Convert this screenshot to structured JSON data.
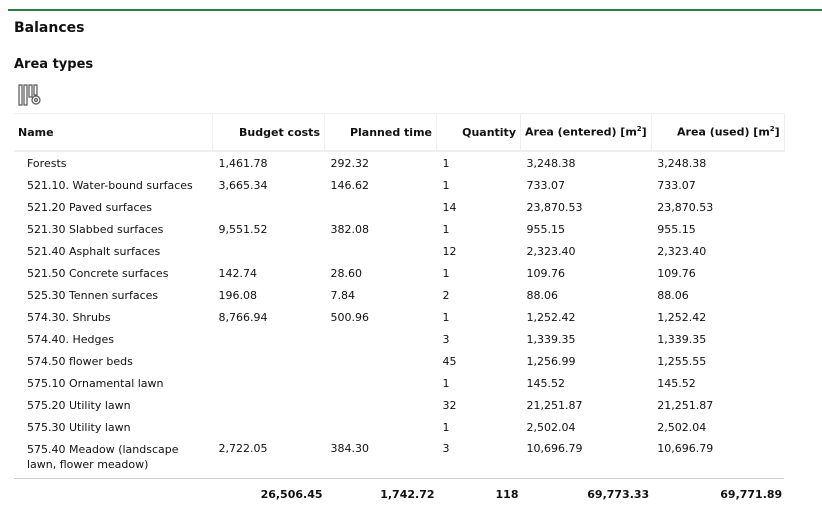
{
  "accent": "#2e7d43",
  "title": "Balances",
  "section": "Area types",
  "columns_icon": "column-settings-icon",
  "headers": {
    "name": "Name",
    "budget": "Budget costs",
    "planned": "Planned time",
    "qty": "Quantity",
    "area_entered": "Area (entered) [m",
    "area_used": "Area (used) [m",
    "sup": "2",
    "close": "]"
  },
  "rows": [
    {
      "name": "Forests",
      "budget": "1,461.78",
      "planned": "292.32",
      "qty": "1",
      "entered": "3,248.38",
      "used": "3,248.38"
    },
    {
      "name": "521.10. Water-bound surfaces",
      "budget": "3,665.34",
      "planned": "146.62",
      "qty": "1",
      "entered": "733.07",
      "used": "733.07"
    },
    {
      "name": "521.20 Paved surfaces",
      "budget": "",
      "planned": "",
      "qty": "14",
      "entered": "23,870.53",
      "used": "23,870.53"
    },
    {
      "name": "521.30 Slabbed surfaces",
      "budget": "9,551.52",
      "planned": "382.08",
      "qty": "1",
      "entered": "955.15",
      "used": "955.15"
    },
    {
      "name": "521.40 Asphalt surfaces",
      "budget": "",
      "planned": "",
      "qty": "12",
      "entered": "2,323.40",
      "used": "2,323.40"
    },
    {
      "name": "521.50 Concrete surfaces",
      "budget": "142.74",
      "planned": "28.60",
      "qty": "1",
      "entered": "109.76",
      "used": "109.76"
    },
    {
      "name": "525.30 Tennen surfaces",
      "budget": "196.08",
      "planned": "7.84",
      "qty": "2",
      "entered": "88.06",
      "used": "88.06"
    },
    {
      "name": "574.30. Shrubs",
      "budget": "8,766.94",
      "planned": "500.96",
      "qty": "1",
      "entered": "1,252.42",
      "used": "1,252.42"
    },
    {
      "name": "574.40. Hedges",
      "budget": "",
      "planned": "",
      "qty": "3",
      "entered": "1,339.35",
      "used": "1,339.35"
    },
    {
      "name": "574.50 flower beds",
      "budget": "",
      "planned": "",
      "qty": "45",
      "entered": "1,256.99",
      "used": "1,255.55"
    },
    {
      "name": "575.10 Ornamental lawn",
      "budget": "",
      "planned": "",
      "qty": "1",
      "entered": "145.52",
      "used": "145.52"
    },
    {
      "name": "575.20 Utility lawn",
      "budget": "",
      "planned": "",
      "qty": "32",
      "entered": "21,251.87",
      "used": "21,251.87"
    },
    {
      "name": "575.30 Utility lawn",
      "budget": "",
      "planned": "",
      "qty": "1",
      "entered": "2,502.04",
      "used": "2,502.04"
    },
    {
      "name": "575.40 Meadow (landscape lawn, flower meadow)",
      "budget": "2,722.05",
      "planned": "384.30",
      "qty": "3",
      "entered": "10,696.79",
      "used": "10,696.79"
    }
  ],
  "totals": {
    "budget": "26,506.45",
    "planned": "1,742.72",
    "qty": "118",
    "entered": "69,773.33",
    "used": "69,771.89"
  }
}
